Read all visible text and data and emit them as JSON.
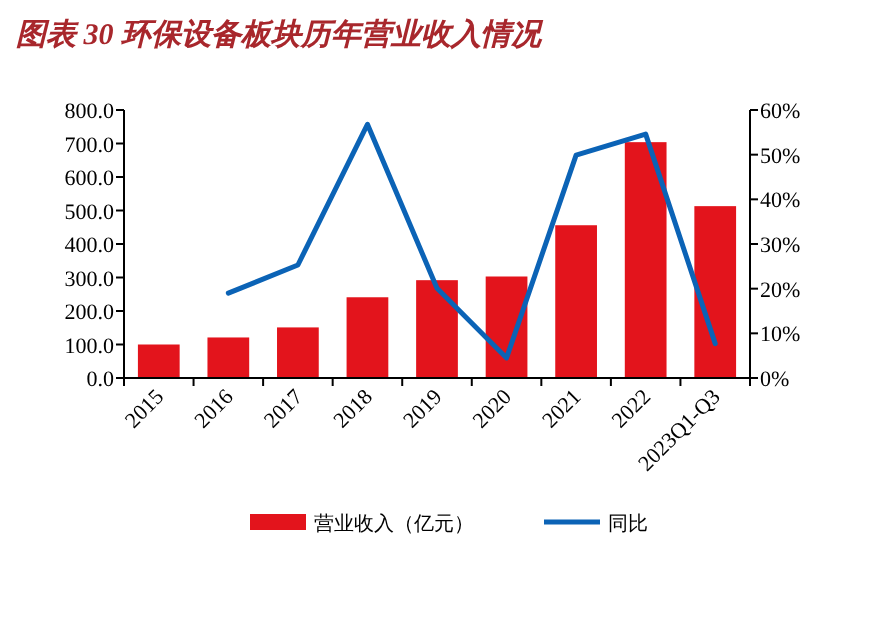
{
  "chart_data": {
    "type": "bar",
    "title": "图表 30   环保设备板块历年营业收入情况",
    "categories": [
      "2015",
      "2016",
      "2017",
      "2018",
      "2019",
      "2020",
      "2021",
      "2022",
      "2023Q1-Q3"
    ],
    "series": [
      {
        "name": "营业收入（亿元）",
        "color": "#e3141c",
        "values": [
          100,
          121,
          151,
          241,
          292,
          303,
          456,
          704,
          513
        ]
      },
      {
        "name": "同比",
        "type": "line",
        "axis": "y2",
        "color": "#0b63b6",
        "values": [
          null,
          19,
          25.3,
          56.8,
          20.1,
          4.5,
          49.9,
          54.6,
          7.7
        ]
      }
    ],
    "ylim": [
      0,
      800
    ],
    "yticks": [
      {
        "value": 0,
        "label": "0.0"
      },
      {
        "value": 100,
        "label": "100.0"
      },
      {
        "value": 200,
        "label": "200.0"
      },
      {
        "value": 300,
        "label": "300.0"
      },
      {
        "value": 400,
        "label": "400.0"
      },
      {
        "value": 500,
        "label": "500.0"
      },
      {
        "value": 600,
        "label": "600.0"
      },
      {
        "value": 700,
        "label": "700.0"
      },
      {
        "value": 800,
        "label": "800.0"
      }
    ],
    "y2lim": [
      0,
      60
    ],
    "y2ticks": [
      {
        "value": 0,
        "label": "0%"
      },
      {
        "value": 10,
        "label": "10%"
      },
      {
        "value": 20,
        "label": "20%"
      },
      {
        "value": 30,
        "label": "30%"
      },
      {
        "value": 40,
        "label": "40%"
      },
      {
        "value": 50,
        "label": "50%"
      },
      {
        "value": 60,
        "label": "60%"
      }
    ],
    "legend": "bottom",
    "grid": false
  }
}
